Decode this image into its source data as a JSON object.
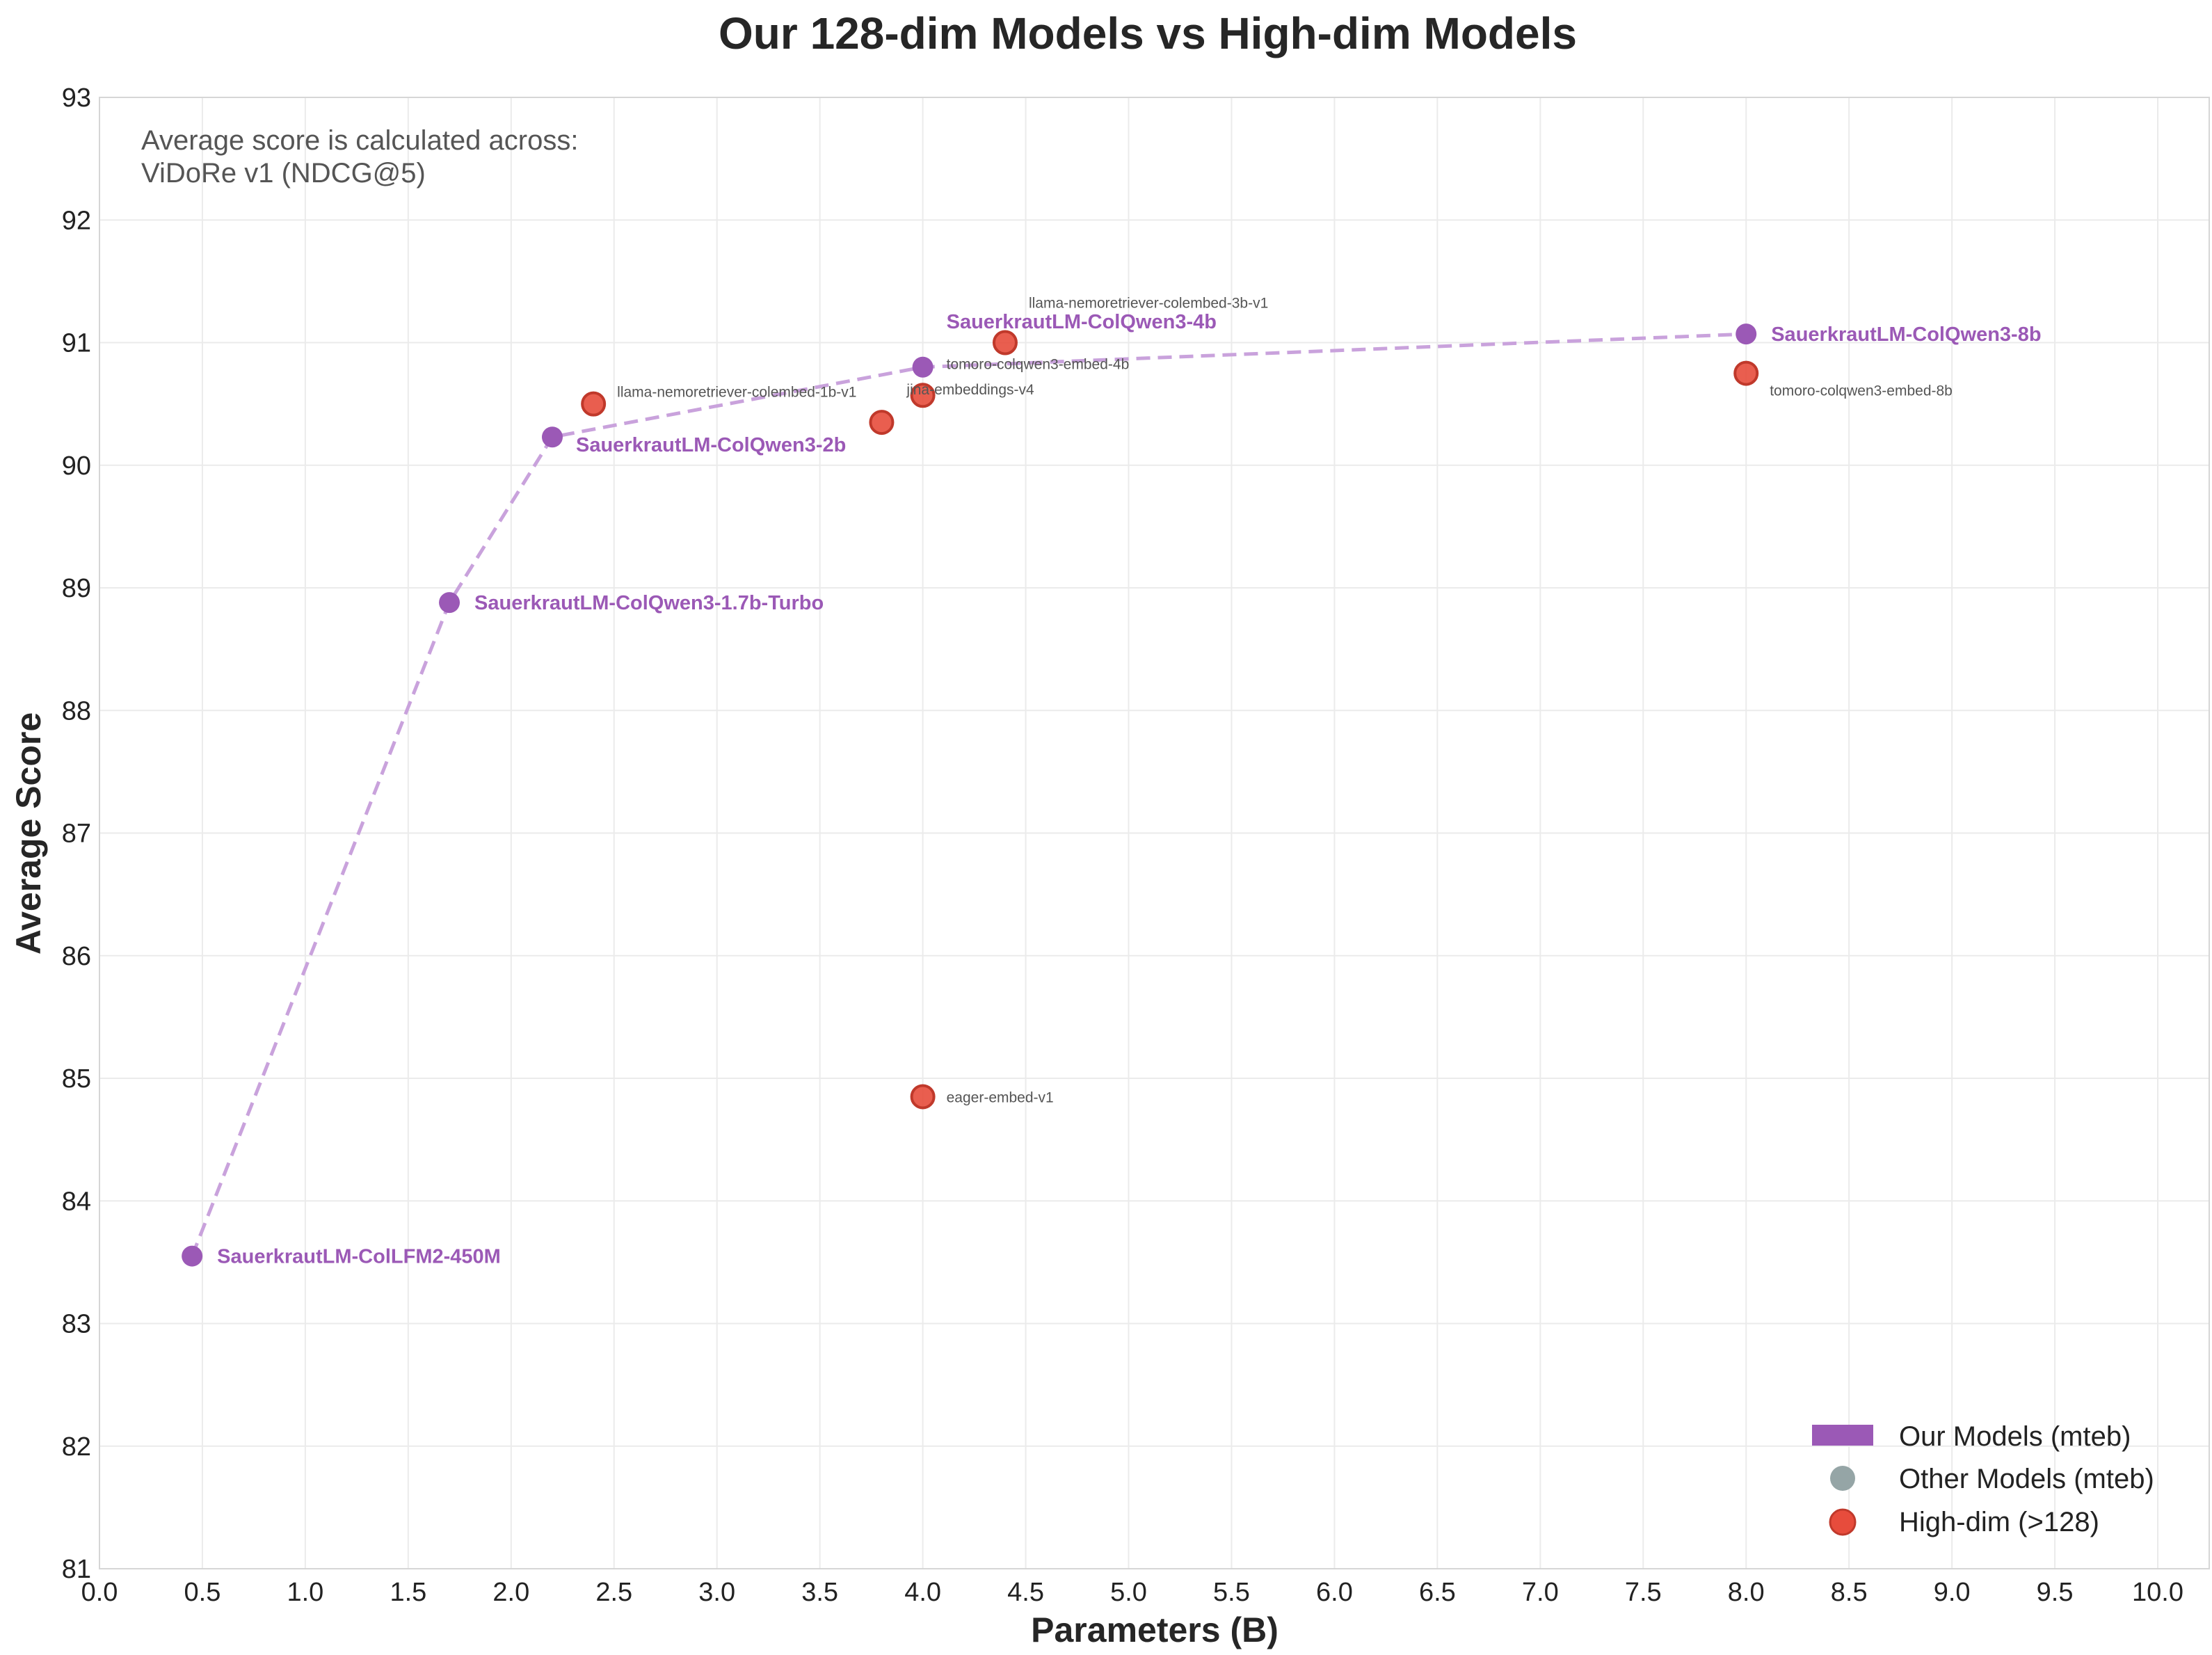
{
  "chart_data": {
    "type": "scatter",
    "title": "Our 128-dim Models vs High-dim Models",
    "xlabel": "Parameters (B)",
    "ylabel": "Average Score",
    "xlim": [
      0,
      10.25
    ],
    "ylim": [
      81,
      93
    ],
    "x_ticks": [
      0.0,
      0.5,
      1.0,
      1.5,
      2.0,
      2.5,
      3.0,
      3.5,
      4.0,
      4.5,
      5.0,
      5.5,
      6.0,
      6.5,
      7.0,
      7.5,
      8.0,
      8.5,
      9.0,
      9.5,
      10.0
    ],
    "y_ticks": [
      81,
      82,
      83,
      84,
      85,
      86,
      87,
      88,
      89,
      90,
      91,
      92,
      93
    ],
    "grid": true,
    "annotation": {
      "line1": "Average score is calculated across:",
      "line2": "ViDoRe v1 (NDCG@5)"
    },
    "colors": {
      "our": "#9b59b6",
      "our_line": "#c9a2dc",
      "high_dim": "#e74c3c",
      "high_dim_edge": "#c0392b",
      "other": "#95a5a6"
    },
    "series": [
      {
        "name": "Our Models (mteb)",
        "points": [
          {
            "label": "SauerkrautLM-ColLFM2-450M",
            "x": 0.45,
            "y": 83.55
          },
          {
            "label": "SauerkrautLM-ColQwen3-1.7b-Turbo",
            "x": 1.7,
            "y": 88.88
          },
          {
            "label": "SauerkrautLM-ColQwen3-2b",
            "x": 2.2,
            "y": 90.23
          },
          {
            "label": "SauerkrautLM-ColQwen3-4b",
            "x": 4.0,
            "y": 90.8
          },
          {
            "label": "SauerkrautLM-ColQwen3-8b",
            "x": 8.0,
            "y": 91.07
          }
        ]
      },
      {
        "name": "Other Models (mteb)",
        "points": []
      },
      {
        "name": "High-dim (>128)",
        "points": [
          {
            "label": "llama-nemoretriever-colembed-1b-v1",
            "x": 2.4,
            "y": 90.5
          },
          {
            "label": "jina-embeddings-v4",
            "x": 3.8,
            "y": 90.35
          },
          {
            "label": "tomoro-colqwen3-embed-4b",
            "x": 4.0,
            "y": 90.57
          },
          {
            "label": "llama-nemoretriever-colembed-3b-v1",
            "x": 4.4,
            "y": 91.0
          },
          {
            "label": "tomoro-colqwen3-embed-8b",
            "x": 8.0,
            "y": 90.75
          },
          {
            "label": "eager-embed-v1",
            "x": 4.0,
            "y": 84.85
          }
        ]
      }
    ],
    "legend": {
      "position": "bottom-right",
      "entries": [
        "Our Models (mteb)",
        "Other Models (mteb)",
        "High-dim (>128)"
      ]
    }
  }
}
